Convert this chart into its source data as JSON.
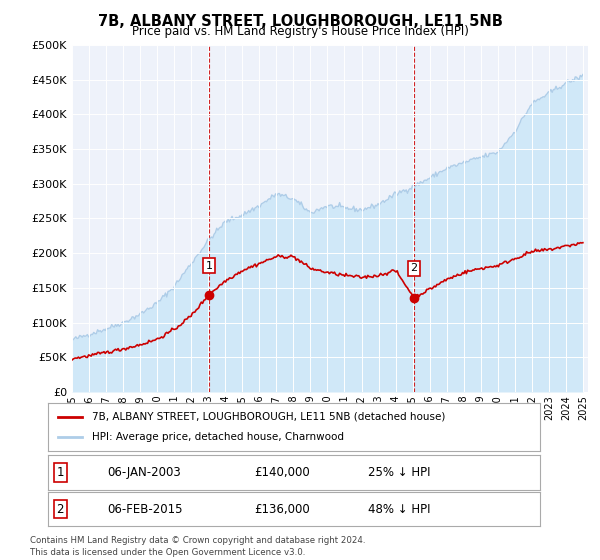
{
  "title": "7B, ALBANY STREET, LOUGHBOROUGH, LE11 5NB",
  "subtitle": "Price paid vs. HM Land Registry's House Price Index (HPI)",
  "ylim": [
    0,
    500000
  ],
  "yticks": [
    0,
    50000,
    100000,
    150000,
    200000,
    250000,
    300000,
    350000,
    400000,
    450000,
    500000
  ],
  "ytick_labels": [
    "£0",
    "£50K",
    "£100K",
    "£150K",
    "£200K",
    "£250K",
    "£300K",
    "£350K",
    "£400K",
    "£450K",
    "£500K"
  ],
  "hpi_color": "#aecde8",
  "hpi_fill_color": "#d0e8f8",
  "price_color": "#cc0000",
  "dashed_color": "#cc0000",
  "background_color": "#ffffff",
  "plot_bg_color": "#eef2fa",
  "legend_label_price": "7B, ALBANY STREET, LOUGHBOROUGH, LE11 5NB (detached house)",
  "legend_label_hpi": "HPI: Average price, detached house, Charnwood",
  "annotation1_label": "1",
  "annotation1_date": "06-JAN-2003",
  "annotation1_price": "£140,000",
  "annotation1_pct": "25% ↓ HPI",
  "annotation2_label": "2",
  "annotation2_date": "06-FEB-2015",
  "annotation2_price": "£136,000",
  "annotation2_pct": "48% ↓ HPI",
  "footnote1": "Contains HM Land Registry data © Crown copyright and database right 2024.",
  "footnote2": "This data is licensed under the Open Government Licence v3.0.",
  "sale1_x": 2003.04,
  "sale1_y": 140000,
  "sale2_x": 2015.09,
  "sale2_y": 136000,
  "xmin": 1995,
  "xmax": 2025.3
}
